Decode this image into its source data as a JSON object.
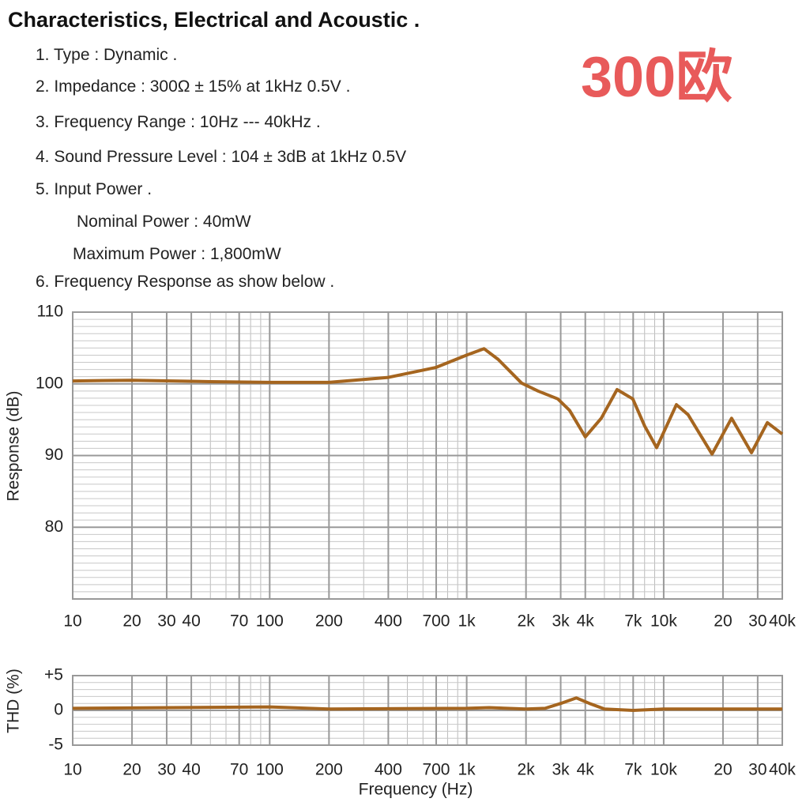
{
  "header": {
    "title": "Characteristics, Electrical and Acoustic .",
    "badge": "300欧"
  },
  "specs": [
    "1. Type : Dynamic .",
    "2. Impedance : 300Ω ± 15% at 1kHz 0.5V .",
    "3. Frequency Range : 10Hz --- 40kHz .",
    "4. Sound Pressure Level : 104 ± 3dB at 1kHz 0.5V",
    "5. Input Power .",
    "Nominal Power : 40mW",
    "Maximum Power : 1,800mW",
    "6. Frequency Response as show below ."
  ],
  "chart_data": [
    {
      "type": "line",
      "ylabel": "Response (dB)",
      "xscale": "log",
      "grid": true,
      "color": "#a5651f",
      "xlim": [
        10,
        40000
      ],
      "ylim": [
        70,
        110
      ],
      "xticks": [
        10,
        20,
        30,
        40,
        70,
        100,
        200,
        400,
        700,
        {
          "value": 1000,
          "label": "1k"
        },
        {
          "value": 2000,
          "label": "2k"
        },
        {
          "value": 3000,
          "label": "3k"
        },
        {
          "value": 4000,
          "label": "4k"
        },
        {
          "value": 7000,
          "label": "7k"
        },
        {
          "value": 10000,
          "label": "10k"
        },
        {
          "value": 20000,
          "label": "20"
        },
        {
          "value": 30000,
          "label": "30"
        },
        {
          "value": 40000,
          "label": "40k"
        }
      ],
      "yticks": [
        80,
        90,
        100,
        110
      ],
      "x": [
        10,
        20,
        50,
        100,
        200,
        400,
        700,
        1000,
        1225,
        1445,
        1900,
        2300,
        2900,
        3330,
        4000,
        4820,
        5800,
        6970,
        8010,
        9210,
        11600,
        13300,
        17600,
        22100,
        27900,
        33600,
        40000
      ],
      "values": [
        100.4,
        100.5,
        100.3,
        100.2,
        100.2,
        100.9,
        102.3,
        104,
        104.9,
        103.4,
        100.1,
        99.0,
        97.9,
        96.3,
        92.6,
        95.2,
        99.2,
        97.9,
        94.1,
        91.1,
        97.1,
        95.7,
        90.2,
        95.2,
        90.4,
        94.6,
        93.0
      ]
    },
    {
      "type": "line",
      "ylabel": "THD (%)",
      "xlabel": "Frequency (Hz)",
      "xscale": "log",
      "grid": true,
      "color": "#a5651f",
      "xlim": [
        10,
        40000
      ],
      "ylim": [
        -5,
        5
      ],
      "xticks": [
        10,
        20,
        30,
        40,
        70,
        100,
        200,
        400,
        700,
        {
          "value": 1000,
          "label": "1k"
        },
        {
          "value": 2000,
          "label": "2k"
        },
        {
          "value": 3000,
          "label": "3k"
        },
        {
          "value": 4000,
          "label": "4k"
        },
        {
          "value": 7000,
          "label": "7k"
        },
        {
          "value": 10000,
          "label": "10k"
        },
        {
          "value": 20000,
          "label": "20"
        },
        {
          "value": 30000,
          "label": "30"
        },
        {
          "value": 40000,
          "label": "40k"
        }
      ],
      "yticks": [
        {
          "value": 5,
          "label": "+5"
        },
        0,
        -5
      ],
      "x": [
        10,
        100,
        200,
        1000,
        1300,
        2000,
        2500,
        3000,
        3600,
        4200,
        5000,
        7000,
        10000,
        40000
      ],
      "values": [
        0.3,
        0.5,
        0.2,
        0.3,
        0.4,
        0.2,
        0.3,
        1.0,
        1.8,
        1.0,
        0.2,
        0,
        0.2,
        0.2
      ]
    }
  ]
}
